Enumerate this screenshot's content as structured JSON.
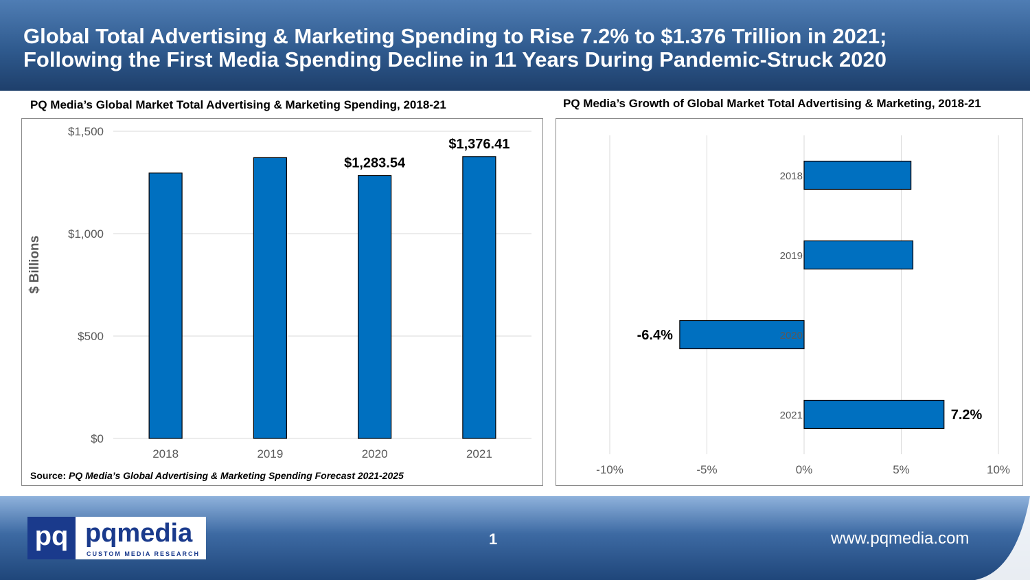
{
  "header": {
    "line1": "Global Total Advertising & Marketing Spending to Rise 7.2% to $1.376 Trillion in 2021;",
    "line2": "Following the First Media Spending Decline in 11 Years During Pandemic-Struck 2020"
  },
  "footer": {
    "page_number": "1",
    "url": "www.pqmedia.com",
    "logo_mark": "pq",
    "logo_word": "pqmedia",
    "logo_tagline": "CUSTOM MEDIA RESEARCH"
  },
  "source": {
    "label": "Source:",
    "text": "PQ Media’s Global Advertising & Marketing Spending Forecast 2021-2025"
  },
  "colors": {
    "bar": "#0070c0",
    "bar_border": "#000000",
    "grid": "#d9d9d9"
  },
  "chart_data": [
    {
      "type": "bar",
      "title": "PQ Media’s Global Market Total Advertising & Marketing Spending, 2018-21",
      "categories": [
        "2018",
        "2019",
        "2020",
        "2021"
      ],
      "values": [
        1296,
        1371,
        1283.54,
        1376.41
      ],
      "data_labels": [
        "",
        "",
        "$1,283.54",
        "$1,376.41"
      ],
      "ylabel": "$ Billions",
      "ylim": [
        0,
        1500
      ],
      "yticks": [
        0,
        500,
        1000,
        1500
      ],
      "ytick_labels": [
        "$0",
        "$500",
        "$1,000",
        "$1,500"
      ],
      "grid": true
    },
    {
      "type": "bar",
      "orientation": "horizontal",
      "title": "PQ Media’s Growth of Global Market Total Advertising & Marketing, 2018-21",
      "categories": [
        "2018",
        "2019",
        "2020",
        "2021"
      ],
      "values": [
        5.5,
        5.6,
        -6.4,
        7.2
      ],
      "data_labels": [
        "",
        "",
        "-6.4%",
        "7.2%"
      ],
      "xlim": [
        -10,
        10
      ],
      "xticks": [
        -10,
        -5,
        0,
        5,
        10
      ],
      "xtick_labels": [
        "-10%",
        "-5%",
        "0%",
        "5%",
        "10%"
      ],
      "grid": true
    }
  ]
}
